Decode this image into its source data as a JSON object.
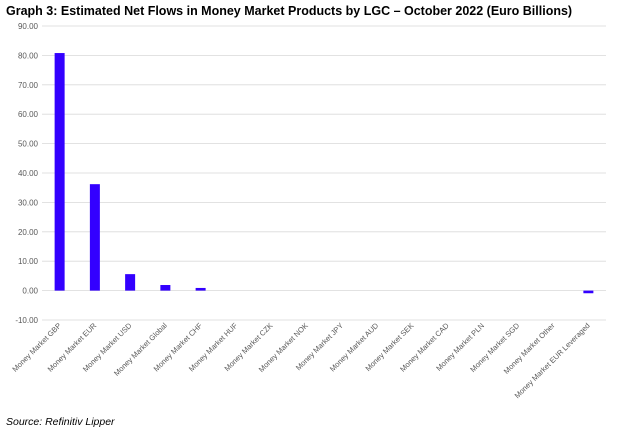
{
  "title": "Graph 3: Estimated Net Flows in Money Market Products by LGC – October 2022 (Euro Billions)",
  "source": "Source: Refinitiv Lipper",
  "chart_data": {
    "type": "bar",
    "categories": [
      "Money Market GBP",
      "Money Market EUR",
      "Money Market USD",
      "Money Market Global",
      "Money Market CHF",
      "Money Market HUF",
      "Money Market CZK",
      "Money Market NOK",
      "Money Market JPY",
      "Money Market AUD",
      "Money Market SEK",
      "Money Market CAD",
      "Money Market PLN",
      "Money Market SGD",
      "Money Market Other",
      "Money Market EUR Leveraged"
    ],
    "values": [
      80.8,
      36.2,
      5.6,
      1.9,
      0.9,
      0.05,
      0.02,
      0.01,
      0.0,
      0.0,
      0.0,
      0.0,
      0.0,
      -0.01,
      -0.05,
      -0.9
    ],
    "y_ticks": [
      "-10.00",
      "0.00",
      "10.00",
      "20.00",
      "30.00",
      "40.00",
      "50.00",
      "60.00",
      "70.00",
      "80.00",
      "90.00"
    ],
    "ylim": [
      -10,
      90
    ],
    "grid": true,
    "legend": "none",
    "bar_color": "#3300FF",
    "grid_color": "#D9D9D9"
  }
}
